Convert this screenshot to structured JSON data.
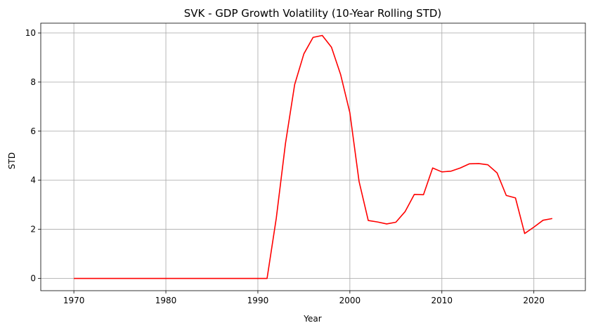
{
  "chart_data": {
    "type": "line",
    "title": "SVK - GDP Growth Volatility (10-Year Rolling STD)",
    "xlabel": "Year",
    "ylabel": "STD",
    "xlim": [
      1966.4,
      2025.6
    ],
    "ylim": [
      -0.5,
      10.4
    ],
    "x_ticks": [
      1970,
      1980,
      1990,
      2000,
      2010,
      2020
    ],
    "y_ticks": [
      0,
      2,
      4,
      6,
      8,
      10
    ],
    "grid": true,
    "series": [
      {
        "color": "#ff0000",
        "x": [
          1970,
          1971,
          1972,
          1973,
          1974,
          1975,
          1976,
          1977,
          1978,
          1979,
          1980,
          1981,
          1982,
          1983,
          1984,
          1985,
          1986,
          1987,
          1988,
          1989,
          1990,
          1991,
          1992,
          1993,
          1994,
          1995,
          1996,
          1997,
          1998,
          1999,
          2000,
          2001,
          2002,
          2003,
          2004,
          2005,
          2006,
          2007,
          2008,
          2009,
          2010,
          2011,
          2012,
          2013,
          2014,
          2015,
          2016,
          2017,
          2018,
          2019,
          2020,
          2021,
          2022
        ],
        "y": [
          0,
          0,
          0,
          0,
          0,
          0,
          0,
          0,
          0,
          0,
          0,
          0,
          0,
          0,
          0,
          0,
          0,
          0,
          0,
          0,
          0,
          0,
          2.45,
          5.5,
          7.9,
          9.15,
          9.82,
          9.9,
          9.42,
          8.3,
          6.75,
          3.95,
          2.36,
          2.3,
          2.22,
          2.29,
          2.72,
          3.42,
          3.41,
          4.5,
          4.34,
          4.37,
          4.5,
          4.67,
          4.68,
          4.63,
          4.3,
          3.38,
          3.28,
          1.83,
          2.09,
          2.37,
          2.44
        ]
      }
    ]
  }
}
